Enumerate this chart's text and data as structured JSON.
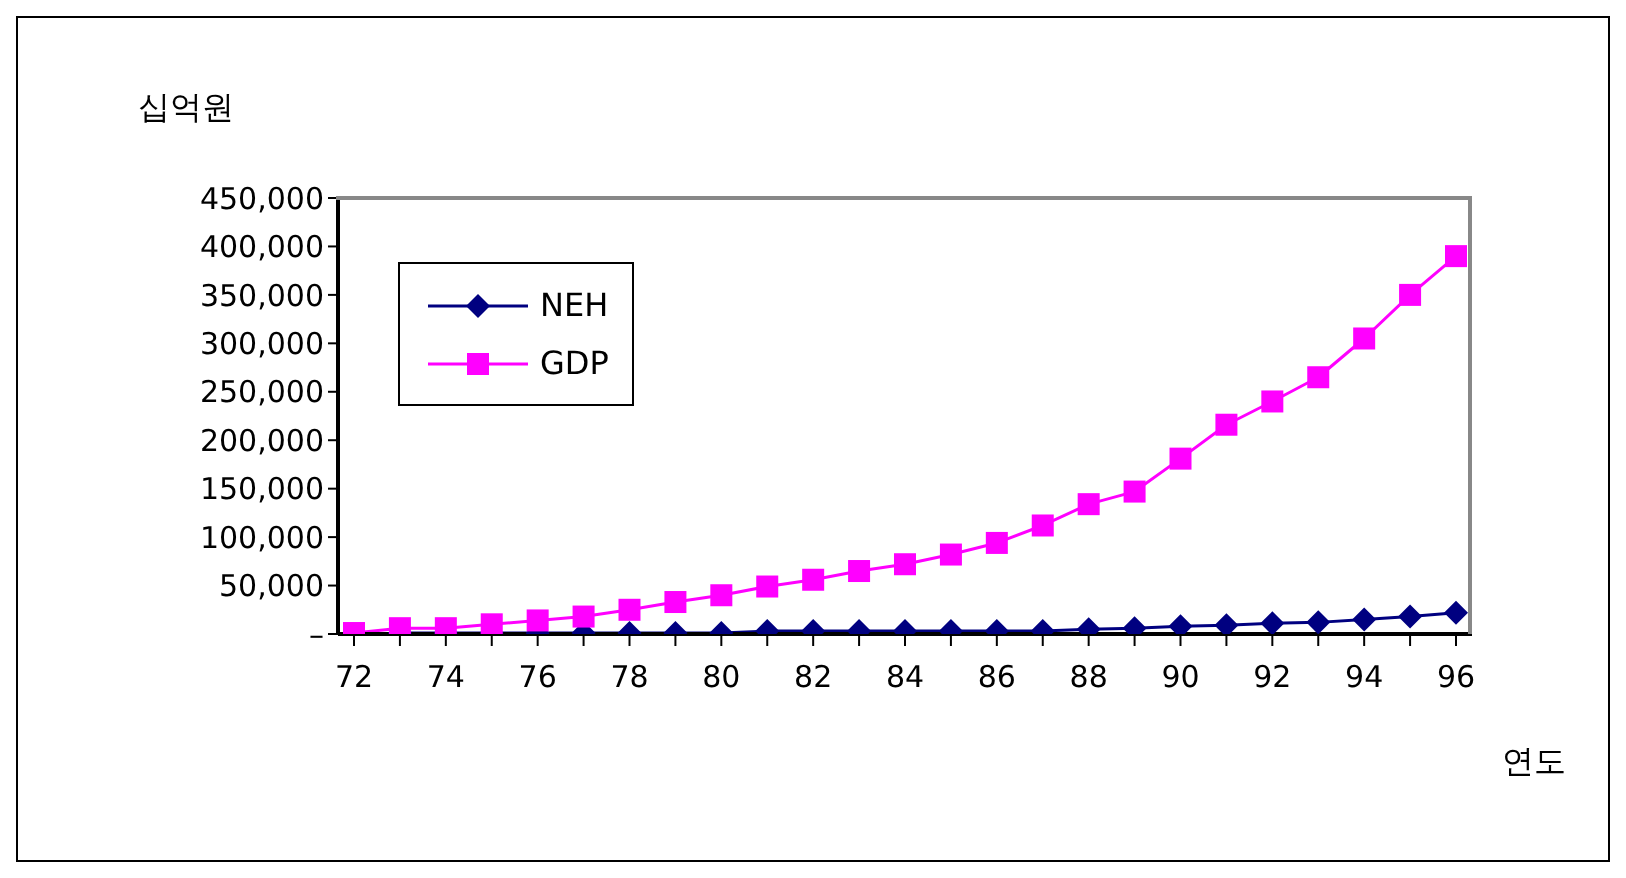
{
  "chart_data": {
    "type": "line",
    "ylabel": "십억원",
    "xlabel": "연도",
    "categories": [
      "72",
      null,
      "74",
      null,
      "76",
      null,
      "78",
      null,
      "80",
      null,
      "82",
      null,
      "84",
      null,
      "86",
      null,
      "88",
      null,
      "90",
      null,
      "92",
      null,
      "94",
      null,
      "96"
    ],
    "series": [
      {
        "name": "NEH",
        "color": "#000080",
        "marker": "diamond",
        "values": [
          null,
          1000,
          1000,
          1000,
          1000,
          1000,
          1000,
          1000,
          1000,
          3000,
          3000,
          3000,
          3000,
          3000,
          3000,
          3000,
          5000,
          6000,
          8000,
          9000,
          11000,
          12000,
          15000,
          18000,
          22000
        ]
      },
      {
        "name": "GDP",
        "color": "#ff00ff",
        "marker": "square",
        "values": [
          1000,
          6000,
          6000,
          10000,
          14000,
          18000,
          25000,
          33000,
          40000,
          49000,
          56000,
          65000,
          72000,
          82000,
          94000,
          112000,
          134000,
          147000,
          181000,
          216000,
          240000,
          265000,
          305000,
          350000,
          390000
        ]
      }
    ],
    "ylim": [
      0,
      450000
    ],
    "yticks": [
      {
        "value": 0,
        "label": "–"
      },
      {
        "value": 50000,
        "label": "50,000"
      },
      {
        "value": 100000,
        "label": "100,000"
      },
      {
        "value": 150000,
        "label": "150,000"
      },
      {
        "value": 200000,
        "label": "200,000"
      },
      {
        "value": 250000,
        "label": "250,000"
      },
      {
        "value": 300000,
        "label": "300,000"
      },
      {
        "value": 350000,
        "label": "350,000"
      },
      {
        "value": 400000,
        "label": "400,000"
      },
      {
        "value": 450000,
        "label": "450,000"
      }
    ],
    "grid": false,
    "legend": "top left"
  }
}
